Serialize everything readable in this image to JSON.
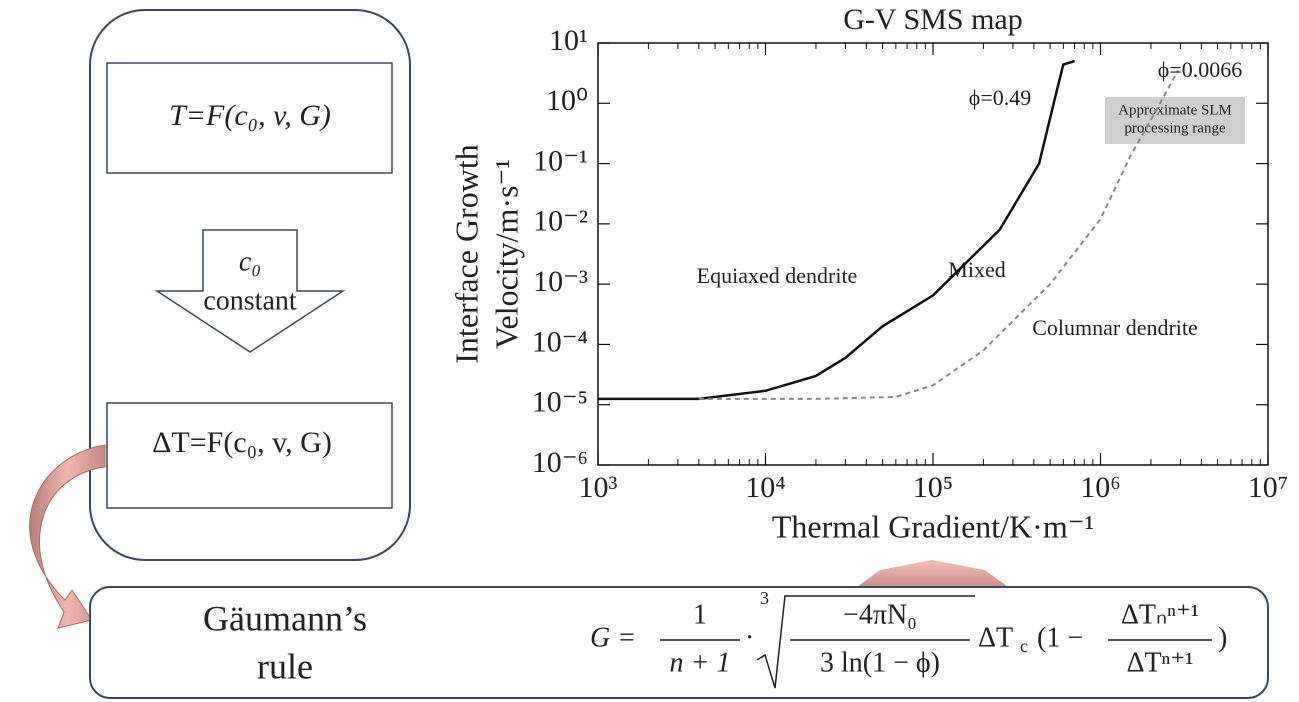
{
  "left_panel": {
    "top_box": "T=F(c₀, v, G)",
    "arrow_lines": [
      "c₀",
      "constant"
    ],
    "bottom_box": "ΔT=F(c₀, v, G)"
  },
  "rule_box": {
    "name_lines": [
      "Gäumann’s",
      "rule"
    ],
    "formula": {
      "lhs": "G =",
      "frac1_num": "1",
      "frac1_den": "n + 1",
      "dot": "·",
      "root_index": "3",
      "frac2_num": "−4πN₀",
      "frac2_den": "3 ln(1 −  ϕ)",
      "delta_t": "ΔT",
      "delta_t_sub": "c",
      "open": "(1 −",
      "frac3_num": "ΔTₙⁿ⁺¹",
      "frac3_den": "ΔTⁿ⁺¹",
      "close": ")"
    }
  },
  "chart_data": {
    "type": "line",
    "title": "G-V SMS map",
    "x_label": "Thermal Gradient/K·m⁻¹",
    "y_label": [
      "Interface Growth",
      "Velocity/m·s⁻¹"
    ],
    "log_x": true,
    "log_y": true,
    "xlim": [
      1000,
      10000000
    ],
    "ylim": [
      1e-06,
      10
    ],
    "xticks": [
      {
        "value": 1000,
        "label": "10³"
      },
      {
        "value": 10000,
        "label": "10⁴"
      },
      {
        "value": 100000,
        "label": "10⁵"
      },
      {
        "value": 1000000,
        "label": "10⁶"
      },
      {
        "value": 10000000,
        "label": "10⁷"
      }
    ],
    "yticks": [
      {
        "value": 1e-06,
        "label": "10⁻⁶"
      },
      {
        "value": 1e-05,
        "label": "10⁻⁵"
      },
      {
        "value": 0.0001,
        "label": "10⁻⁴"
      },
      {
        "value": 0.001,
        "label": "10⁻³"
      },
      {
        "value": 0.01,
        "label": "10⁻²"
      },
      {
        "value": 0.1,
        "label": "10⁻¹"
      },
      {
        "value": 1,
        "label": "10⁰"
      },
      {
        "value": 10,
        "label": "10¹"
      }
    ],
    "series": [
      {
        "name": "ϕ=0.49",
        "color": "#111111",
        "dash": false,
        "x": [
          1000,
          4000,
          10000,
          20000,
          30000,
          50000,
          100000,
          250000,
          430000,
          530000,
          600000,
          700000
        ],
        "values": [
          1.25e-05,
          1.25e-05,
          1.7e-05,
          3e-05,
          6e-05,
          0.0002,
          0.00065,
          0.008,
          0.1,
          1.1,
          4.4,
          5
        ]
      },
      {
        "name": "ϕ=0.0066",
        "color": "#888888",
        "dash": true,
        "x": [
          4000,
          20000,
          60000,
          100000,
          200000,
          500000,
          1000000,
          1500000,
          2000000,
          2900000
        ],
        "values": [
          1.25e-05,
          1.25e-05,
          1.35e-05,
          2.1e-05,
          8e-05,
          0.001,
          0.012,
          0.13,
          0.53,
          3.5
        ]
      }
    ],
    "annotations": [
      "Equiaxed dendrite",
      "Mixed",
      "Columnar dendrite"
    ],
    "range_box": [
      "Approximate SLM",
      "processing range"
    ]
  }
}
